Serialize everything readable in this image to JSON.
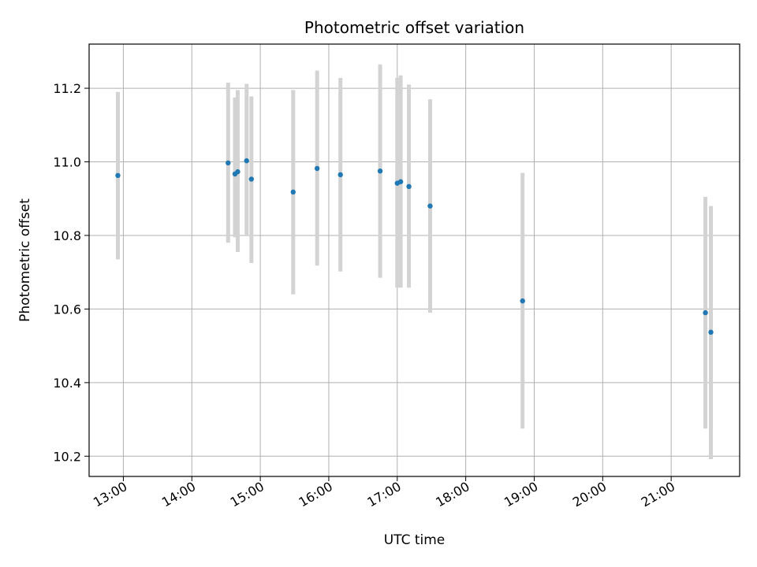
{
  "chart_data": {
    "type": "scatter",
    "title": "Photometric offset variation",
    "xlabel": "UTC time",
    "ylabel": "Photometric offset",
    "x_unit": "hours UTC",
    "xlim": [
      12.5,
      22.0
    ],
    "ylim": [
      10.145,
      11.32
    ],
    "grid": true,
    "x_ticks": [
      {
        "value": 13,
        "label": "13:00"
      },
      {
        "value": 14,
        "label": "14:00"
      },
      {
        "value": 15,
        "label": "15:00"
      },
      {
        "value": 16,
        "label": "16:00"
      },
      {
        "value": 17,
        "label": "17:00"
      },
      {
        "value": 18,
        "label": "18:00"
      },
      {
        "value": 19,
        "label": "19:00"
      },
      {
        "value": 20,
        "label": "20:00"
      },
      {
        "value": 21,
        "label": "21:00"
      }
    ],
    "y_ticks": [
      {
        "value": 10.2,
        "label": "10.2"
      },
      {
        "value": 10.4,
        "label": "10.4"
      },
      {
        "value": 10.6,
        "label": "10.6"
      },
      {
        "value": 10.8,
        "label": "10.8"
      },
      {
        "value": 11.0,
        "label": "11.0"
      },
      {
        "value": 11.2,
        "label": "11.2"
      }
    ],
    "point_color": "#1f77b4",
    "errorbar_color": "#d3d3d3",
    "points": [
      {
        "x": 12.92,
        "y": 10.963,
        "ylow": 10.735,
        "yhigh": 11.19
      },
      {
        "x": 14.53,
        "y": 10.997,
        "ylow": 10.78,
        "yhigh": 11.215
      },
      {
        "x": 14.63,
        "y": 10.967,
        "ylow": 10.795,
        "yhigh": 11.175
      },
      {
        "x": 14.67,
        "y": 10.973,
        "ylow": 10.755,
        "yhigh": 11.195
      },
      {
        "x": 14.8,
        "y": 11.003,
        "ylow": 10.8,
        "yhigh": 11.212
      },
      {
        "x": 14.87,
        "y": 10.953,
        "ylow": 10.725,
        "yhigh": 11.178
      },
      {
        "x": 15.48,
        "y": 10.918,
        "ylow": 10.64,
        "yhigh": 11.195
      },
      {
        "x": 15.83,
        "y": 10.982,
        "ylow": 10.718,
        "yhigh": 11.248
      },
      {
        "x": 16.17,
        "y": 10.965,
        "ylow": 10.702,
        "yhigh": 11.228
      },
      {
        "x": 16.75,
        "y": 10.975,
        "ylow": 10.685,
        "yhigh": 11.265
      },
      {
        "x": 17.0,
        "y": 10.942,
        "ylow": 10.658,
        "yhigh": 11.228
      },
      {
        "x": 17.05,
        "y": 10.946,
        "ylow": 10.658,
        "yhigh": 11.235
      },
      {
        "x": 17.17,
        "y": 10.933,
        "ylow": 10.658,
        "yhigh": 11.21
      },
      {
        "x": 17.48,
        "y": 10.88,
        "ylow": 10.59,
        "yhigh": 11.17
      },
      {
        "x": 18.83,
        "y": 10.622,
        "ylow": 10.275,
        "yhigh": 10.97
      },
      {
        "x": 21.5,
        "y": 10.59,
        "ylow": 10.275,
        "yhigh": 10.905
      },
      {
        "x": 21.58,
        "y": 10.537,
        "ylow": 10.192,
        "yhigh": 10.88
      }
    ]
  }
}
